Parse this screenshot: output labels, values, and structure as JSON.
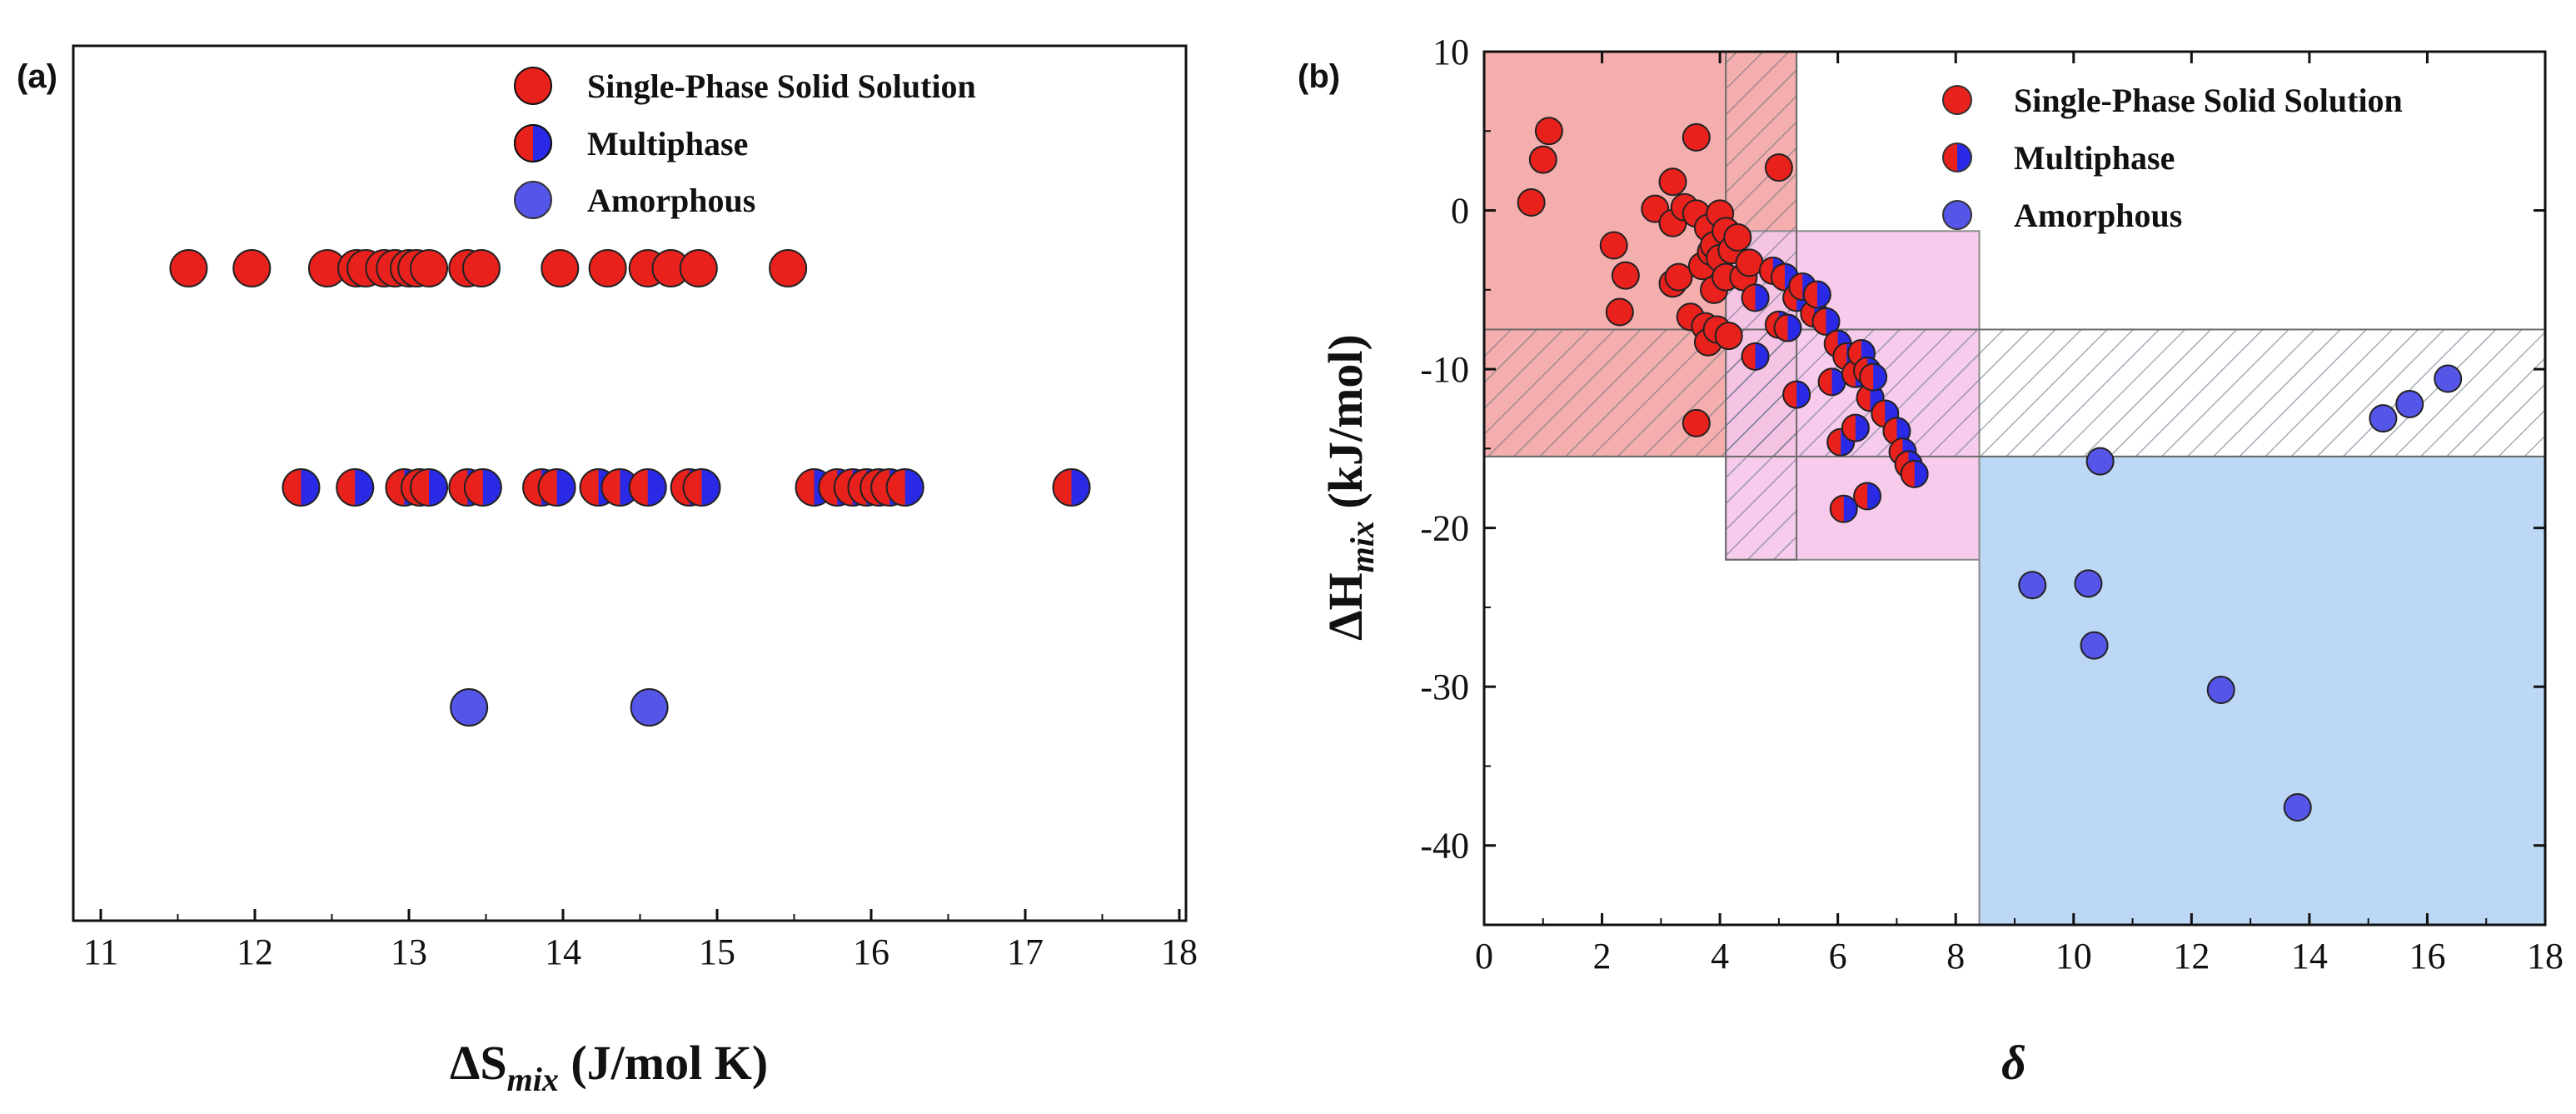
{
  "colors": {
    "single": "#e8211d",
    "multi_red": "#e8211d",
    "multi_blue": "#2a2ae6",
    "amorphous": "#5555e8",
    "region_ss": "#f4a5a5",
    "region_multi": "#f5c5ea",
    "region_amorph": "#b5d4f3",
    "hatch": "#5a6a7a"
  },
  "chart_data": [
    {
      "type": "scatter",
      "panel": "(a)",
      "xlabel_main": "ΔS",
      "xlabel_sub": "mix",
      "xlabel_units": " (J/mol K)",
      "ylabel": "",
      "xlim": [
        11,
        18
      ],
      "xticks": [
        "11",
        "12",
        "13",
        "14",
        "15",
        "16",
        "17",
        "18"
      ],
      "legend": [
        "Single-Phase Solid Solution",
        "Multiphase",
        "Amorphous"
      ],
      "series": [
        {
          "name": "Single-Phase Solid Solution",
          "row": 3,
          "x": [
            11.57,
            11.98,
            12.47,
            12.66,
            12.72,
            12.84,
            12.91,
            13.0,
            13.05,
            13.13,
            13.38,
            13.47,
            13.98,
            14.29,
            14.55,
            14.7,
            14.88,
            15.46
          ]
        },
        {
          "name": "Multiphase",
          "row": 2,
          "x": [
            12.3,
            12.65,
            12.97,
            13.07,
            13.13,
            13.38,
            13.48,
            13.86,
            13.96,
            14.23,
            14.37,
            14.55,
            14.82,
            14.9,
            15.63,
            15.78,
            15.88,
            15.97,
            16.05,
            16.12,
            16.22,
            17.3
          ]
        },
        {
          "name": "Amorphous",
          "row": 1,
          "x": [
            13.39,
            14.56
          ]
        }
      ]
    },
    {
      "type": "scatter",
      "panel": "(b)",
      "xlabel": "δ",
      "ylabel_main": "ΔH",
      "ylabel_sub": "mix",
      "ylabel_units": " (kJ/mol)",
      "xlim": [
        0,
        18
      ],
      "ylim": [
        -45,
        10
      ],
      "xticks": [
        "0",
        "2",
        "4",
        "6",
        "8",
        "10",
        "12",
        "14",
        "16",
        "18"
      ],
      "yticks": [
        "10",
        "0",
        "-10",
        "-20",
        "-30",
        "-40"
      ],
      "legend": [
        "Single-Phase Solid Solution",
        "Multiphase",
        "Amorphous"
      ],
      "regions": [
        {
          "name": "Single-Phase Solid Solution region",
          "x": [
            0,
            5.3
          ],
          "y": [
            -15.5,
            10
          ],
          "color": "region_ss"
        },
        {
          "name": "Multiphase region",
          "x": [
            4.1,
            8.4
          ],
          "y": [
            -22,
            -1.3
          ],
          "color": "region_multi"
        },
        {
          "name": "Amorphous region",
          "x": [
            8.4,
            18
          ],
          "y": [
            -45,
            -15.5
          ],
          "color": "region_amorph"
        }
      ],
      "hatched_regions": [
        {
          "name": "delta hatched band",
          "x": [
            4.1,
            5.3
          ],
          "y": [
            -22,
            10
          ]
        },
        {
          "name": "enthalpy hatched band",
          "x": [
            0,
            18
          ],
          "y": [
            -15.5,
            -7.5
          ]
        }
      ],
      "series": [
        {
          "name": "Single-Phase Solid Solution",
          "points": [
            [
              0.8,
              0.5
            ],
            [
              1.0,
              3.2
            ],
            [
              1.1,
              5.0
            ],
            [
              2.2,
              -2.2
            ],
            [
              2.3,
              -6.4
            ],
            [
              2.4,
              -4.1
            ],
            [
              2.9,
              0.1
            ],
            [
              3.2,
              1.8
            ],
            [
              3.2,
              -0.8
            ],
            [
              3.2,
              -4.6
            ],
            [
              3.3,
              -4.2
            ],
            [
              3.4,
              0.2
            ],
            [
              3.5,
              -6.7
            ],
            [
              3.6,
              4.6
            ],
            [
              3.6,
              -0.2
            ],
            [
              3.6,
              -13.4
            ],
            [
              3.7,
              -3.5
            ],
            [
              3.75,
              -7.3
            ],
            [
              3.8,
              -8.3
            ],
            [
              3.8,
              -1.1
            ],
            [
              3.85,
              -2.6
            ],
            [
              3.9,
              -5.0
            ],
            [
              3.95,
              -7.5
            ],
            [
              3.9,
              -2.2
            ],
            [
              4.0,
              -0.2
            ],
            [
              4.0,
              -3.0
            ],
            [
              4.1,
              -4.2
            ],
            [
              4.1,
              -1.3
            ],
            [
              4.15,
              -7.9
            ],
            [
              4.2,
              -2.5
            ],
            [
              4.3,
              -1.7
            ],
            [
              4.4,
              -4.2
            ],
            [
              4.5,
              -3.3
            ],
            [
              5.0,
              2.7
            ]
          ]
        },
        {
          "name": "Multiphase",
          "points": [
            [
              4.6,
              -5.5
            ],
            [
              4.6,
              -9.2
            ],
            [
              4.9,
              -3.8
            ],
            [
              5.0,
              -7.2
            ],
            [
              5.1,
              -4.2
            ],
            [
              5.15,
              -7.4
            ],
            [
              5.3,
              -11.6
            ],
            [
              5.3,
              -5.5
            ],
            [
              5.4,
              -4.8
            ],
            [
              5.6,
              -6.5
            ],
            [
              5.65,
              -5.3
            ],
            [
              5.8,
              -7.0
            ],
            [
              5.9,
              -10.8
            ],
            [
              6.0,
              -8.4
            ],
            [
              6.05,
              -14.6
            ],
            [
              6.1,
              -18.8
            ],
            [
              6.15,
              -9.2
            ],
            [
              6.3,
              -10.3
            ],
            [
              6.3,
              -13.7
            ],
            [
              6.4,
              -9.0
            ],
            [
              6.5,
              -10.1
            ],
            [
              6.5,
              -18.0
            ],
            [
              6.55,
              -11.8
            ],
            [
              6.6,
              -10.5
            ],
            [
              6.8,
              -12.8
            ],
            [
              7.0,
              -13.9
            ],
            [
              7.1,
              -15.2
            ],
            [
              7.2,
              -16.0
            ],
            [
              7.3,
              -16.6
            ]
          ]
        },
        {
          "name": "Amorphous",
          "points": [
            [
              9.3,
              -23.6
            ],
            [
              10.25,
              -23.5
            ],
            [
              10.35,
              -27.4
            ],
            [
              10.45,
              -15.8
            ],
            [
              12.5,
              -30.2
            ],
            [
              13.8,
              -37.6
            ],
            [
              15.25,
              -13.1
            ],
            [
              15.7,
              -12.2
            ],
            [
              16.35,
              -10.6
            ]
          ]
        }
      ]
    }
  ]
}
